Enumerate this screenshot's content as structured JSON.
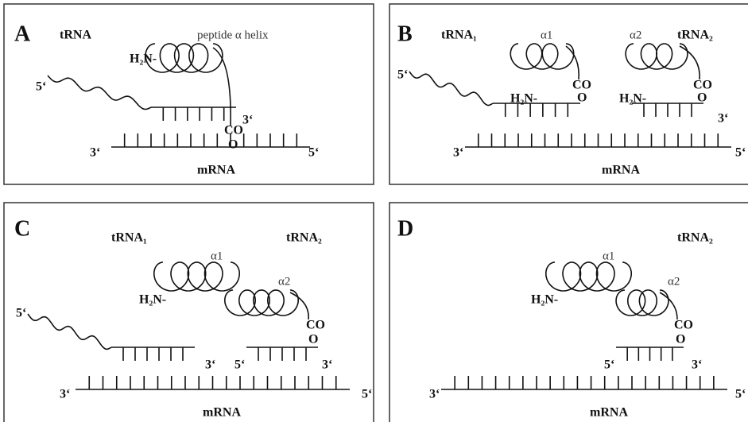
{
  "panels": [
    {
      "letter": "A",
      "texts": [
        "tRNA",
        "H₂N-",
        "peptide α helix",
        "CO",
        "O",
        "5‘",
        "3‘",
        "3‘",
        "5‘",
        "mRNA"
      ]
    },
    {
      "letter": "B",
      "texts": [
        "tRNA₁",
        "α1",
        "α2",
        "tRNA₂",
        "5‘",
        "H₂N-",
        "CO",
        "O",
        "H₂N-",
        "CO",
        "O",
        "3‘",
        "3‘",
        "5‘",
        "mRNA"
      ]
    },
    {
      "letter": "C",
      "texts": [
        "tRNA₁",
        "tRNA₂",
        "α1",
        "α2",
        "H₂N-",
        "CO",
        "O",
        "5‘",
        "3‘",
        "5‘",
        "3‘",
        "3‘",
        "5‘",
        "mRNA"
      ]
    },
    {
      "letter": "D",
      "texts": [
        "tRNA₂",
        "α1",
        "α2",
        "H₂N-",
        "CO",
        "O",
        "5‘",
        "3‘",
        "3‘",
        "5‘",
        "mRNA"
      ]
    }
  ]
}
